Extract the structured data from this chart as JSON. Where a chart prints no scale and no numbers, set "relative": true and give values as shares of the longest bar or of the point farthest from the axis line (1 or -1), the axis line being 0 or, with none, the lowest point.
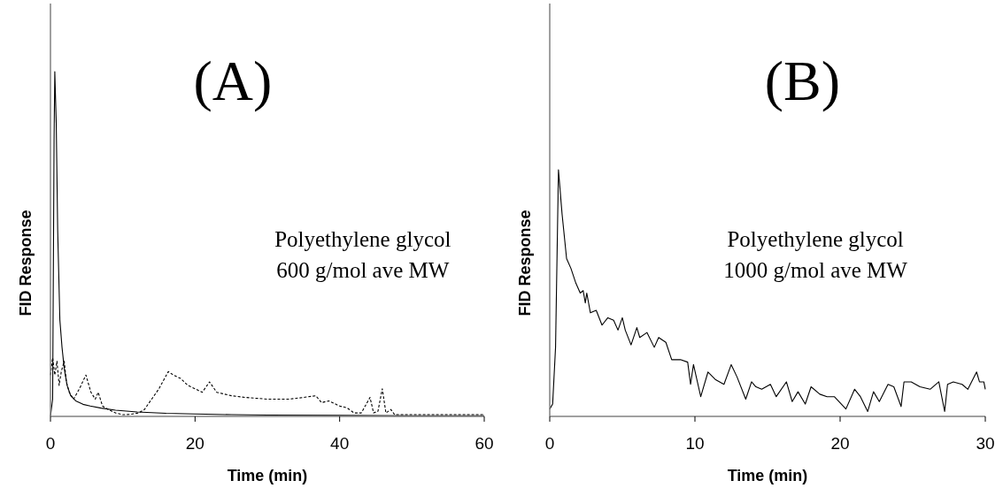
{
  "chart_data": [
    {
      "type": "line",
      "title": "(A)",
      "xlabel": "Time (min)",
      "ylabel": "FID Response",
      "annotations": [
        "Polyethylene glycol\n600 g/mol ave MW"
      ],
      "relative": true,
      "xlim": [
        0,
        60
      ],
      "xticks": [
        0,
        20,
        40,
        60
      ],
      "tick_labels": "x",
      "grid": false,
      "series": [
        {
          "color": "#000000",
          "line_style": "solid",
          "x": [
            0,
            0.3,
            0.5,
            0.6,
            0.8,
            1.0,
            1.3,
            1.6,
            1.9,
            2.3,
            2.8,
            3.5,
            4.5,
            5.5,
            7,
            9,
            12,
            16,
            20,
            25,
            30,
            40,
            50,
            60
          ],
          "values": [
            0,
            0.05,
            0.8,
            1,
            0.85,
            0.54,
            0.28,
            0.2,
            0.14,
            0.09,
            0.06,
            0.045,
            0.035,
            0.03,
            0.024,
            0.018,
            0.013,
            0.009,
            0.007,
            0.005,
            0.004,
            0.003,
            0.002,
            0.002
          ]
        },
        {
          "color": "#000000",
          "line_style": "dashed",
          "x": [
            0,
            0.3,
            0.6,
            0.9,
            1.2,
            1.5,
            1.9,
            2.2,
            2.6,
            3.2,
            4.0,
            4.9,
            5.6,
            6.2,
            6.6,
            7.2,
            8,
            9,
            10,
            11,
            12.2,
            13,
            14,
            15,
            16.3,
            17,
            18,
            19,
            20,
            21,
            22,
            23,
            25,
            27,
            30,
            33,
            35,
            36.7,
            37.5,
            38.5,
            40,
            41,
            42,
            43,
            44.2,
            44.7,
            45.3,
            45.9,
            46.4,
            47.1,
            47.6,
            50,
            55,
            60
          ],
          "values": [
            0.12,
            0.17,
            0.12,
            0.16,
            0.09,
            0.13,
            0.16,
            0.1,
            0.07,
            0.05,
            0.08,
            0.12,
            0.07,
            0.05,
            0.07,
            0.03,
            0.02,
            0.01,
            0.005,
            0.006,
            0.01,
            0.02,
            0.05,
            0.08,
            0.13,
            0.12,
            0.11,
            0.09,
            0.08,
            0.07,
            0.1,
            0.07,
            0.06,
            0.055,
            0.05,
            0.05,
            0.055,
            0.06,
            0.04,
            0.045,
            0.03,
            0.025,
            0.01,
            0.01,
            0.055,
            0.01,
            0.015,
            0.08,
            0.01,
            0.02,
            0.005,
            0.005,
            0.005,
            0.005
          ]
        }
      ]
    },
    {
      "type": "line",
      "title": "(B)",
      "xlabel": "Time (min)",
      "ylabel": "FID Response",
      "annotations": [
        "Polyethylene glycol\n1000 g/mol ave MW"
      ],
      "relative": true,
      "xlim": [
        0,
        30
      ],
      "xticks": [
        0,
        10,
        20,
        30
      ],
      "tick_labels": "x",
      "grid": false,
      "series": [
        {
          "color": "#000000",
          "line_style": "solid",
          "x": [
            0,
            0.2,
            0.4,
            0.6,
            0.85,
            1.16,
            1.46,
            1.8,
            2.1,
            2.3,
            2.45,
            2.55,
            2.8,
            3.2,
            3.6,
            4.0,
            4.4,
            4.7,
            5.0,
            5.2,
            5.6,
            6.0,
            6.2,
            6.7,
            7.2,
            7.5,
            8.0,
            8.4,
            9.0,
            9.5,
            9.7,
            9.9,
            10.4,
            10.9,
            11.4,
            12.0,
            12.5,
            12.9,
            13.5,
            13.9,
            14.2,
            14.6,
            15.2,
            15.6,
            16.3,
            16.7,
            17.1,
            17.6,
            18.0,
            18.6,
            19.1,
            19.6,
            20.4,
            21.0,
            21.4,
            21.9,
            22.3,
            22.7,
            23.3,
            23.7,
            24.2,
            24.4,
            24.9,
            25.5,
            26.2,
            26.8,
            27.2,
            27.4,
            27.8,
            28.4,
            28.8,
            29.4,
            29.6,
            29.9,
            30
          ],
          "values": [
            0.03,
            0.05,
            0.28,
            1,
            0.82,
            0.64,
            0.6,
            0.54,
            0.5,
            0.51,
            0.46,
            0.5,
            0.42,
            0.43,
            0.37,
            0.4,
            0.39,
            0.35,
            0.4,
            0.35,
            0.29,
            0.36,
            0.32,
            0.34,
            0.28,
            0.32,
            0.3,
            0.23,
            0.23,
            0.22,
            0.13,
            0.21,
            0.08,
            0.18,
            0.15,
            0.13,
            0.21,
            0.16,
            0.07,
            0.14,
            0.12,
            0.11,
            0.13,
            0.08,
            0.14,
            0.06,
            0.1,
            0.05,
            0.12,
            0.09,
            0.08,
            0.08,
            0.03,
            0.11,
            0.08,
            0.02,
            0.1,
            0.06,
            0.13,
            0.12,
            0.04,
            0.14,
            0.14,
            0.12,
            0.11,
            0.14,
            0.02,
            0.13,
            0.14,
            0.13,
            0.11,
            0.18,
            0.14,
            0.14,
            0.11
          ]
        }
      ]
    }
  ]
}
